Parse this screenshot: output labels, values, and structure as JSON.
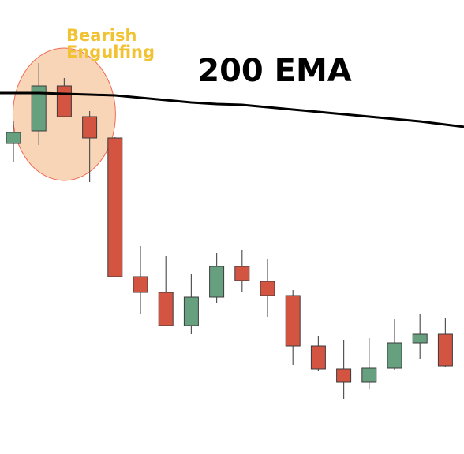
{
  "chart_data": {
    "type": "candlestick",
    "title": "200 EMA",
    "xlabel": "",
    "ylabel": "",
    "grid": false,
    "ylim": [
      0,
      576
    ],
    "y_direction": "price increases upward",
    "annotation": {
      "text_line1": "Bearish",
      "text_line2": "Engulfing",
      "highlighted_candles": [
        1,
        2,
        3
      ]
    },
    "colors": {
      "bullish": "#66a07f",
      "bearish": "#d45442",
      "ema_line": "#000000",
      "highlight_fill": "#f7cba5",
      "highlight_stroke": "#ef6a55",
      "annotation_text": "#f1c232",
      "wick": "#555555"
    },
    "candles": [
      {
        "open": 394,
        "high": 423,
        "low": 370,
        "close": 408
      },
      {
        "open": 410,
        "high": 496,
        "low": 392,
        "close": 467
      },
      {
        "open": 467,
        "high": 477,
        "low": 431,
        "close": 428
      },
      {
        "open": 428,
        "high": 435,
        "low": 345,
        "close": 401
      },
      {
        "open": 401,
        "high": 402,
        "low": 225,
        "close": 225
      },
      {
        "open": 225,
        "high": 264,
        "low": 178,
        "close": 205
      },
      {
        "open": 205,
        "high": 251,
        "low": 163,
        "close": 163
      },
      {
        "open": 163,
        "high": 229,
        "low": 152,
        "close": 199
      },
      {
        "open": 199,
        "high": 255,
        "low": 192,
        "close": 238
      },
      {
        "open": 238,
        "high": 259,
        "low": 205,
        "close": 220
      },
      {
        "open": 219,
        "high": 248,
        "low": 174,
        "close": 201
      },
      {
        "open": 201,
        "high": 208,
        "low": 113,
        "close": 137
      },
      {
        "open": 137,
        "high": 150,
        "low": 105,
        "close": 108
      },
      {
        "open": 108,
        "high": 144,
        "low": 70,
        "close": 91
      },
      {
        "open": 91,
        "high": 147,
        "low": 83,
        "close": 109
      },
      {
        "open": 109,
        "high": 171,
        "low": 106,
        "close": 141
      },
      {
        "open": 141,
        "high": 178,
        "low": 121,
        "close": 152
      },
      {
        "open": 152,
        "high": 172,
        "low": 110,
        "close": 112
      }
    ],
    "ema": [
      458,
      458,
      457,
      456,
      455,
      452,
      449,
      446,
      444,
      443,
      440,
      437,
      434,
      431,
      428,
      425,
      422,
      418
    ]
  }
}
